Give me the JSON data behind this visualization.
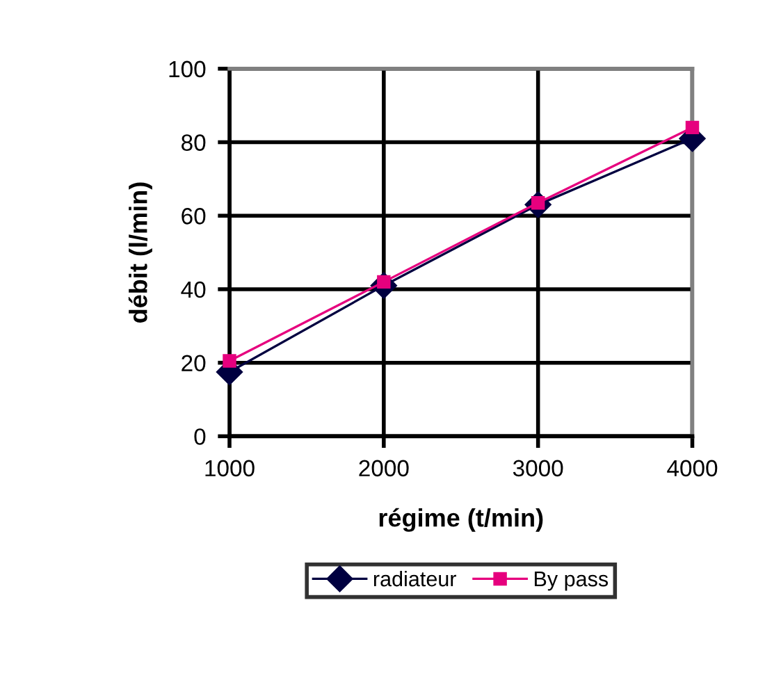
{
  "chart_data": {
    "type": "line",
    "xlabel": "régime (t/min)",
    "ylabel": "débit (l/min)",
    "x": [
      1000,
      2000,
      3000,
      4000
    ],
    "series": [
      {
        "name": "radiateur",
        "color": "#000040",
        "marker": "diamond",
        "values": [
          17.5,
          41,
          63,
          81
        ]
      },
      {
        "name": "By pass",
        "color": "#e6007e",
        "marker": "square",
        "values": [
          20.5,
          42,
          63.5,
          84
        ]
      }
    ],
    "xlim": [
      1000,
      4000
    ],
    "xticks": [
      1000,
      2000,
      3000,
      4000
    ],
    "ylim": [
      0,
      100
    ],
    "yticks": [
      0,
      20,
      40,
      60,
      80,
      100
    ],
    "grid": true,
    "legend": "bottom"
  }
}
